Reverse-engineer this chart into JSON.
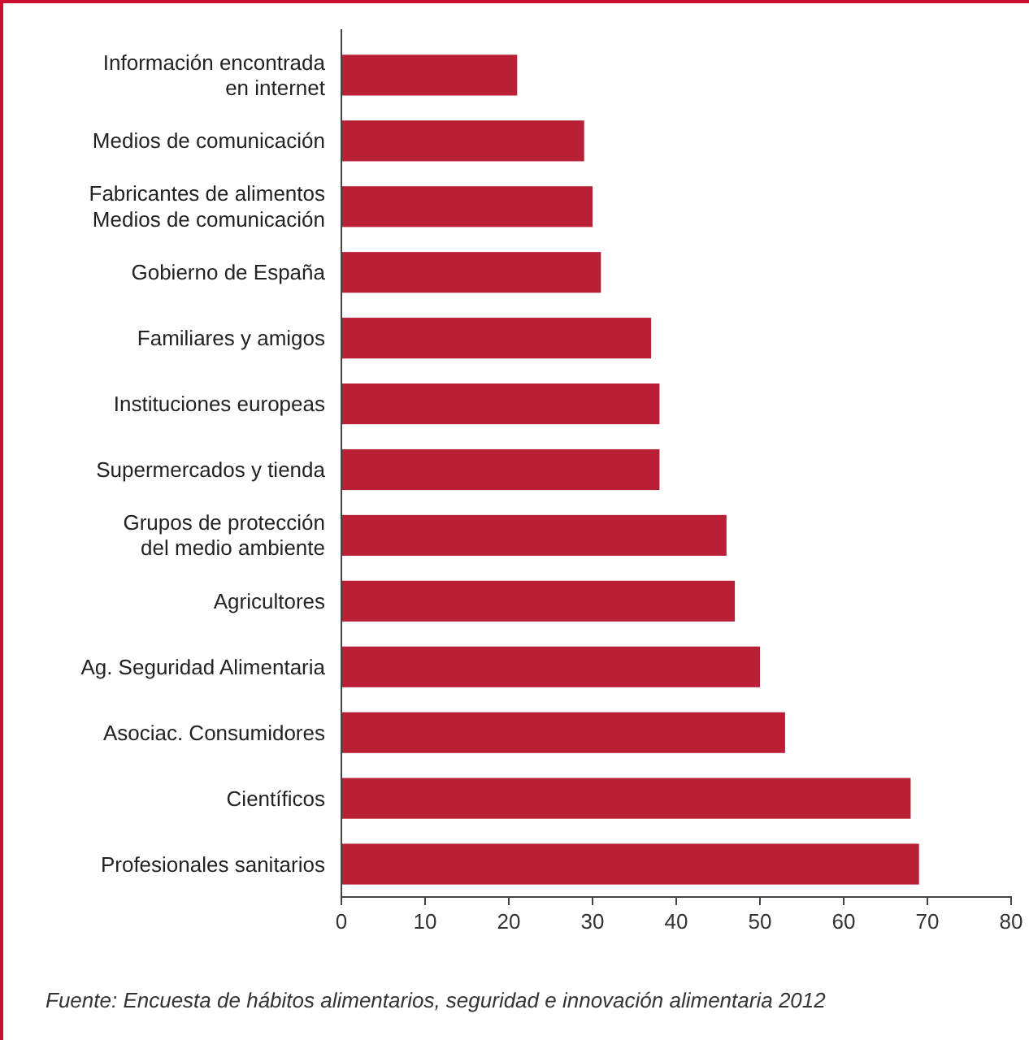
{
  "chart_data": {
    "type": "bar",
    "orientation": "horizontal",
    "categories": [
      "Información encontrada\nen internet",
      "Medios de comunicación",
      "Fabricantes de alimentos\nMedios de comunicación",
      "Gobierno de España",
      "Familiares y amigos",
      "Instituciones europeas",
      "Supermercados y tienda",
      "Grupos de protección\ndel medio ambiente",
      "Agricultores",
      "Ag. Seguridad Alimentaria",
      "Asociac. Consumidores",
      "Científicos",
      "Profesionales sanitarios"
    ],
    "values": [
      21,
      29,
      30,
      31,
      37,
      38,
      38,
      46,
      47,
      50,
      53,
      68,
      69
    ],
    "color": "#b92035",
    "xlim": [
      0,
      80
    ],
    "xticks": [
      0,
      10,
      20,
      30,
      40,
      50,
      60,
      70,
      80
    ],
    "grid": false,
    "annotations": [
      "Fuente: Encuesta de hábitos alimentarios, seguridad e innovación alimentaria 2012"
    ]
  }
}
